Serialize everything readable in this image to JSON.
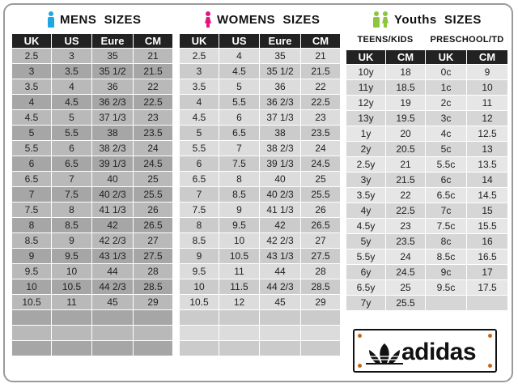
{
  "mens": {
    "title": "MENS  SIZES",
    "icon_color": "#1ea7e1",
    "headers": [
      "UK",
      "US",
      "Eure",
      "CM"
    ],
    "rows": [
      [
        "2.5",
        "3",
        "35",
        "21"
      ],
      [
        "3",
        "3.5",
        "35 1/2",
        "21.5"
      ],
      [
        "3.5",
        "4",
        "36",
        "22"
      ],
      [
        "4",
        "4.5",
        "36 2/3",
        "22.5"
      ],
      [
        "4.5",
        "5",
        "37 1/3",
        "23"
      ],
      [
        "5",
        "5.5",
        "38",
        "23.5"
      ],
      [
        "5.5",
        "6",
        "38 2/3",
        "24"
      ],
      [
        "6",
        "6.5",
        "39 1/3",
        "24.5"
      ],
      [
        "6.5",
        "7",
        "40",
        "25"
      ],
      [
        "7",
        "7.5",
        "40 2/3",
        "25.5"
      ],
      [
        "7.5",
        "8",
        "41 1/3",
        "26"
      ],
      [
        "8",
        "8.5",
        "42",
        "26.5"
      ],
      [
        "8.5",
        "9",
        "42 2/3",
        "27"
      ],
      [
        "9",
        "9.5",
        "43 1/3",
        "27.5"
      ],
      [
        "9.5",
        "10",
        "44",
        "28"
      ],
      [
        "10",
        "10.5",
        "44 2/3",
        "28.5"
      ],
      [
        "10.5",
        "11",
        "45",
        "29"
      ],
      [
        "",
        "",
        "",
        ""
      ],
      [
        "",
        "",
        "",
        ""
      ],
      [
        "",
        "",
        "",
        ""
      ]
    ]
  },
  "womens": {
    "title": "WOMENS  SIZES",
    "icon_color": "#e5157f",
    "headers": [
      "UK",
      "US",
      "Eure",
      "CM"
    ],
    "rows": [
      [
        "2.5",
        "4",
        "35",
        "21"
      ],
      [
        "3",
        "4.5",
        "35 1/2",
        "21.5"
      ],
      [
        "3.5",
        "5",
        "36",
        "22"
      ],
      [
        "4",
        "5.5",
        "36 2/3",
        "22.5"
      ],
      [
        "4.5",
        "6",
        "37  1/3",
        "23"
      ],
      [
        "5",
        "6.5",
        "38",
        "23.5"
      ],
      [
        "5.5",
        "7",
        "38 2/3",
        "24"
      ],
      [
        "6",
        "7.5",
        "39 1/3",
        "24.5"
      ],
      [
        "6.5",
        "8",
        "40",
        "25"
      ],
      [
        "7",
        "8.5",
        "40 2/3",
        "25.5"
      ],
      [
        "7.5",
        "9",
        "41 1/3",
        "26"
      ],
      [
        "8",
        "9.5",
        "42",
        "26.5"
      ],
      [
        "8.5",
        "10",
        "42 2/3",
        "27"
      ],
      [
        "9",
        "10.5",
        "43 1/3",
        "27.5"
      ],
      [
        "9.5",
        "11",
        "44",
        "28"
      ],
      [
        "10",
        "11.5",
        "44 2/3",
        "28.5"
      ],
      [
        "10.5",
        "12",
        "45",
        "29"
      ],
      [
        "",
        "",
        "",
        ""
      ],
      [
        "",
        "",
        "",
        ""
      ],
      [
        "",
        "",
        "",
        ""
      ]
    ]
  },
  "youths": {
    "title": "Youths  SIZES",
    "icon_color": "#8cc63f",
    "teens_label": "TEENS/KIDS",
    "preschool_label": "PRESCHOOL/TD",
    "headers": [
      "UK",
      "CM",
      "UK",
      "CM"
    ],
    "rows": [
      [
        "10y",
        "18",
        "0c",
        "9"
      ],
      [
        "11y",
        "18.5",
        "1c",
        "10"
      ],
      [
        "12y",
        "19",
        "2c",
        "11"
      ],
      [
        "13y",
        "19.5",
        "3c",
        "12"
      ],
      [
        "1y",
        "20",
        "4c",
        "12.5"
      ],
      [
        "2y",
        "20.5",
        "5c",
        "13"
      ],
      [
        "2.5y",
        "21",
        "5.5c",
        "13.5"
      ],
      [
        "3y",
        "21.5",
        "6c",
        "14"
      ],
      [
        "3.5y",
        "22",
        "6.5c",
        "14.5"
      ],
      [
        "4y",
        "22.5",
        "7c",
        "15"
      ],
      [
        "4.5y",
        "23",
        "7.5c",
        "15.5"
      ],
      [
        "5y",
        "23.5",
        "8c",
        "16"
      ],
      [
        "5.5y",
        "24",
        "8.5c",
        "16.5"
      ],
      [
        "6y",
        "24.5",
        "9c",
        "17"
      ],
      [
        "6.5y",
        "25",
        "9.5c",
        "17.5"
      ],
      [
        "7y",
        "25.5",
        "",
        ""
      ]
    ]
  },
  "brand": {
    "name": "adidas",
    "rivet_color": "#c06a1f"
  }
}
